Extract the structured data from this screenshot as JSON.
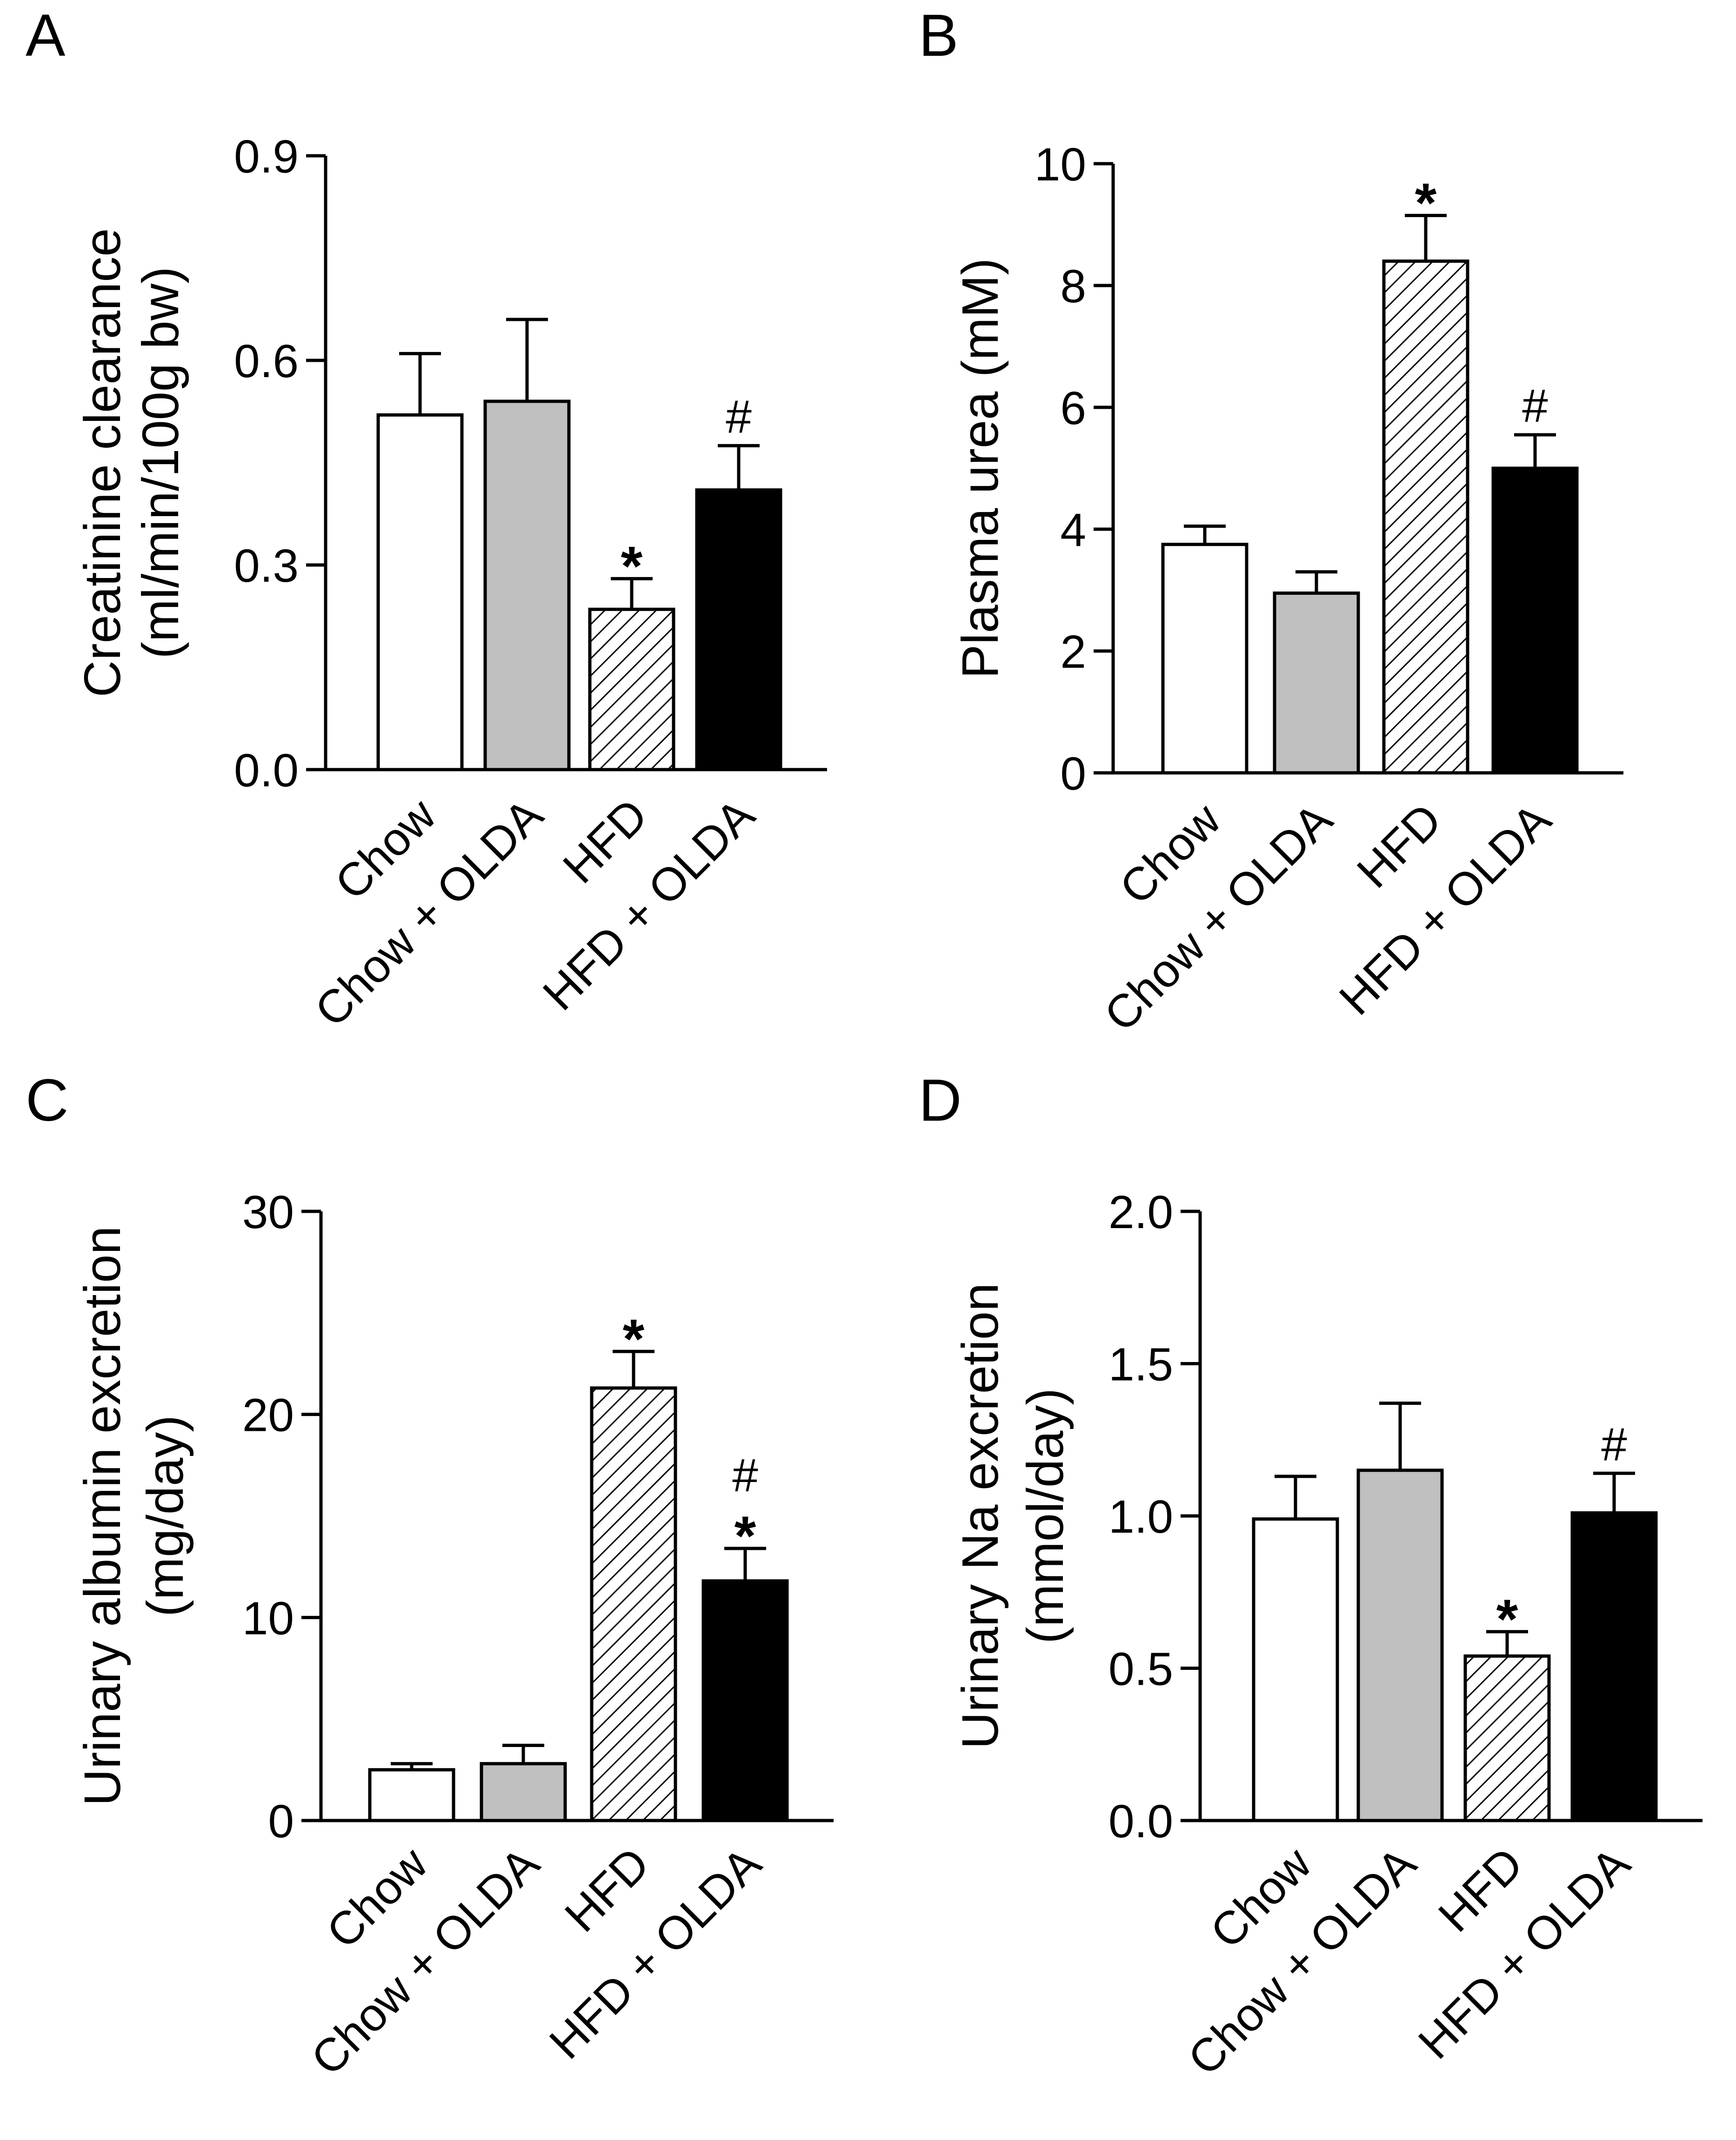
{
  "colors": {
    "axis": "#000000",
    "chow": "#ffffff",
    "chow_olda": "#c0c0c0",
    "hfd_hatch": "#000000",
    "hfd_olda": "#000000"
  },
  "chart_data": [
    {
      "type": "bar",
      "panel_label": "A",
      "ylabel_line1": "Creatinine clearance",
      "ylabel_line2": "(ml/min/100g bw)",
      "categories": [
        "Chow",
        "Chow + OLDA",
        "HFD",
        "HFD + OLDA"
      ],
      "fills": [
        "white",
        "gray",
        "hatch",
        "black"
      ],
      "values": [
        0.52,
        0.54,
        0.235,
        0.41
      ],
      "errors": [
        0.09,
        0.12,
        0.045,
        0.065
      ],
      "annotations": [
        [],
        [],
        [
          "*"
        ],
        [
          "#"
        ]
      ],
      "ylim": [
        0,
        0.9
      ],
      "yticks": [
        0.0,
        0.3,
        0.6,
        0.9
      ],
      "ytick_labels": [
        "0.0",
        "0.3",
        "0.6",
        "0.9"
      ]
    },
    {
      "type": "bar",
      "panel_label": "B",
      "ylabel_line1": "Plasma urea (mM)",
      "ylabel_line2": "",
      "categories": [
        "Chow",
        "Chow + OLDA",
        "HFD",
        "HFD + OLDA"
      ],
      "fills": [
        "white",
        "gray",
        "hatch",
        "black"
      ],
      "values": [
        3.75,
        2.95,
        8.4,
        5.0
      ],
      "errors": [
        0.3,
        0.35,
        0.75,
        0.55
      ],
      "annotations": [
        [],
        [],
        [
          "*"
        ],
        [
          "#"
        ]
      ],
      "ylim": [
        0,
        10
      ],
      "yticks": [
        0,
        2,
        4,
        6,
        8,
        10
      ],
      "ytick_labels": [
        "0",
        "2",
        "4",
        "6",
        "8",
        "10"
      ]
    },
    {
      "type": "bar",
      "panel_label": "C",
      "ylabel_line1": "Urinary albumin excretion",
      "ylabel_line2": "(mg/day)",
      "categories": [
        "Chow",
        "Chow + OLDA",
        "HFD",
        "HFD + OLDA"
      ],
      "fills": [
        "white",
        "gray",
        "hatch",
        "black"
      ],
      "values": [
        2.5,
        2.8,
        21.3,
        11.8
      ],
      "errors": [
        0.3,
        0.9,
        1.8,
        1.6
      ],
      "annotations": [
        [],
        [],
        [
          "*"
        ],
        [
          "*",
          "#"
        ]
      ],
      "ylim": [
        0,
        30
      ],
      "yticks": [
        0,
        10,
        20,
        30
      ],
      "ytick_labels": [
        "0",
        "10",
        "20",
        "30"
      ]
    },
    {
      "type": "bar",
      "panel_label": "D",
      "ylabel_line1": "Urinary Na excretion",
      "ylabel_line2": "(mmol/day)",
      "categories": [
        "Chow",
        "Chow + OLDA",
        "HFD",
        "HFD + OLDA"
      ],
      "fills": [
        "white",
        "gray",
        "hatch",
        "black"
      ],
      "values": [
        0.99,
        1.15,
        0.54,
        1.01
      ],
      "errors": [
        0.14,
        0.22,
        0.08,
        0.13
      ],
      "annotations": [
        [],
        [],
        [
          "*"
        ],
        [
          "#"
        ]
      ],
      "ylim": [
        0,
        2.0
      ],
      "yticks": [
        0.0,
        0.5,
        1.0,
        1.5,
        2.0
      ],
      "ytick_labels": [
        "0.0",
        "0.5",
        "1.0",
        "1.5",
        "2.0"
      ]
    }
  ]
}
